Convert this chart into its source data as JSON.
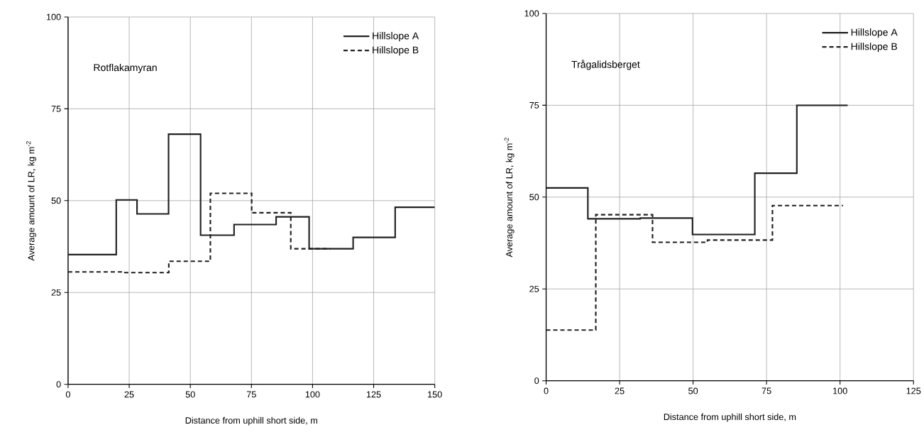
{
  "chart_data": [
    {
      "type": "step",
      "xlabel": "Distance from uphill short side, m",
      "ylabel": "Average amount of LR, kg m$^{-2}$",
      "annotations": [
        "Rotflakamyran"
      ],
      "xlim": [
        0,
        150
      ],
      "xticks": [
        0,
        25,
        50,
        75,
        100,
        125,
        150
      ],
      "ylim": [
        0,
        100
      ],
      "yticks": [
        0,
        25,
        50,
        75,
        100
      ],
      "grid": true,
      "legend": "top right",
      "series": [
        {
          "name": "Hillslope A",
          "color": "#231f20",
          "line_style": "solid",
          "x": [
            0,
            19.7,
            28.2,
            41.1,
            54.2,
            67.9,
            85.1,
            98.6,
            116.6,
            133.8,
            150
          ],
          "values": [
            35.3,
            50.2,
            46.4,
            68.1,
            40.6,
            43.5,
            45.6,
            36.9,
            40.0,
            48.2,
            48.2
          ]
        },
        {
          "name": "Hillslope B",
          "color": "#231f20",
          "line_style": "dashed",
          "x": [
            0,
            22.2,
            41.2,
            58.2,
            75.1,
            91.1,
            107.3
          ],
          "values": [
            30.6,
            30.4,
            33.5,
            52.0,
            46.7,
            36.9,
            36.9
          ]
        }
      ]
    },
    {
      "type": "step",
      "xlabel": "Distance from uphill short side, m",
      "ylabel": "Average amount of LR, kg m$^{-2}$",
      "annotations": [
        "Trågalidsberget"
      ],
      "xlim": [
        0,
        125
      ],
      "xticks": [
        0,
        25,
        50,
        75,
        100,
        125
      ],
      "ylim": [
        0,
        100
      ],
      "yticks": [
        0,
        25,
        50,
        75,
        100
      ],
      "grid": true,
      "legend": "top right",
      "series": [
        {
          "name": "Hillslope A",
          "color": "#231f20",
          "line_style": "solid",
          "x": [
            0,
            14.2,
            32,
            49.8,
            71,
            85.3,
            102.6
          ],
          "values": [
            52.5,
            44.1,
            44.3,
            39.8,
            56.5,
            75.0,
            75.0
          ]
        },
        {
          "name": "Hillslope B",
          "color": "#231f20",
          "line_style": "dashed",
          "x": [
            0,
            16.9,
            36.2,
            54.9,
            77,
            101
          ],
          "values": [
            13.8,
            45.2,
            37.7,
            38.3,
            47.7,
            47.7
          ]
        }
      ]
    }
  ]
}
